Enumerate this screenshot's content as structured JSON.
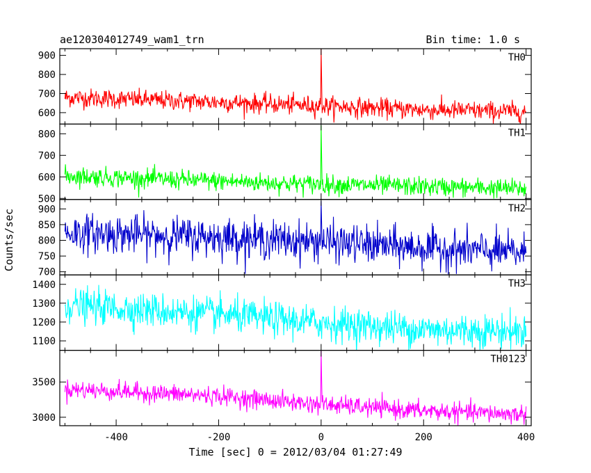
{
  "header": {
    "title": "ae120304012749_wam1_trn",
    "bin_time": "Bin time: 1.0 s"
  },
  "chart_data": {
    "type": "line",
    "title": "ae120304012749_wam1_trn",
    "subtitle": "Bin time: 1.0 s",
    "xlabel": "Time [sec] 0 = 2012/03/04 01:27:49",
    "ylabel": "Counts/sec",
    "xlim": [
      -510,
      410
    ],
    "x_ticks": [
      -400,
      -200,
      0,
      200,
      400
    ],
    "bin_time_sec": 1.0,
    "grid": false,
    "panels": [
      {
        "name": "TH0",
        "color": "#ff0000",
        "ylim": [
          540,
          935
        ],
        "y_ticks": [
          600,
          700,
          800,
          900
        ],
        "baseline": [
          [
            -500,
            680
          ],
          [
            -200,
            655
          ],
          [
            0,
            635
          ],
          [
            200,
            615
          ],
          [
            400,
            605
          ]
        ],
        "noise_sd": 25,
        "peak": {
          "x": 0,
          "y": 935
        }
      },
      {
        "name": "TH1",
        "color": "#00ff00",
        "ylim": [
          495,
          845
        ],
        "y_ticks": [
          500,
          600,
          700,
          800
        ],
        "baseline": [
          [
            -500,
            605
          ],
          [
            -200,
            580
          ],
          [
            0,
            565
          ],
          [
            200,
            555
          ],
          [
            400,
            545
          ]
        ],
        "noise_sd": 22,
        "peak": {
          "x": 0,
          "y": 840
        }
      },
      {
        "name": "TH2",
        "color": "#0000cc",
        "ylim": [
          690,
          930
        ],
        "y_ticks": [
          700,
          750,
          800,
          850,
          900
        ],
        "baseline": [
          [
            -500,
            825
          ],
          [
            -200,
            810
          ],
          [
            0,
            795
          ],
          [
            200,
            775
          ],
          [
            400,
            760
          ]
        ],
        "noise_sd": 30,
        "peak": {
          "x": 0,
          "y": 925
        }
      },
      {
        "name": "TH3",
        "color": "#00ffff",
        "ylim": [
          1050,
          1450
        ],
        "y_ticks": [
          1100,
          1200,
          1300,
          1400
        ],
        "baseline": [
          [
            -500,
            1290
          ],
          [
            -200,
            1240
          ],
          [
            0,
            1195
          ],
          [
            200,
            1160
          ],
          [
            400,
            1150
          ]
        ],
        "noise_sd": 45,
        "peak": null
      },
      {
        "name": "TH0123",
        "color": "#ff00ff",
        "ylim": [
          2880,
          3950
        ],
        "y_ticks": [
          3000,
          3500
        ],
        "baseline": [
          [
            -500,
            3400
          ],
          [
            -200,
            3300
          ],
          [
            0,
            3180
          ],
          [
            200,
            3090
          ],
          [
            400,
            3040
          ]
        ],
        "noise_sd": 65,
        "peak": {
          "x": 0,
          "y": 3950
        }
      }
    ]
  }
}
